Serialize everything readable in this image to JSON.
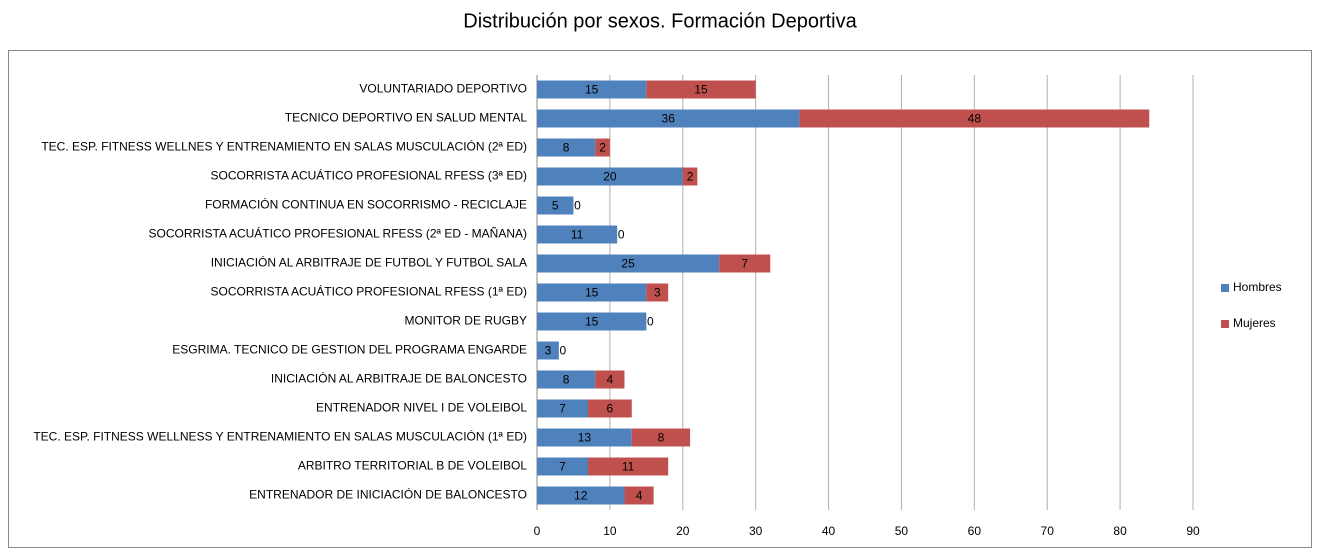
{
  "chart_data": {
    "type": "bar",
    "orientation": "horizontal",
    "stacked": true,
    "title": "Distribución por sexos. Formación Deportiva",
    "categories": [
      "VOLUNTARIADO DEPORTIVO",
      "TECNICO DEPORTIVO EN SALUD MENTAL",
      "TEC. ESP. FITNESS WELLNES Y ENTRENAMIENTO EN SALAS MUSCULACIÓN (2ª ED)",
      "SOCORRISTA ACUÁTICO PROFESIONAL RFESS (3ª ED)",
      "FORMACIÓN CONTINUA EN SOCORRISMO - RECICLAJE",
      "SOCORRISTA ACUÁTICO PROFESIONAL RFESS (2ª ED - MAÑANA)",
      "INICIACIÓN AL ARBITRAJE DE FUTBOL Y FUTBOL SALA",
      "SOCORRISTA ACUÁTICO PROFESIONAL RFESS (1ª ED)",
      "MONITOR DE RUGBY",
      "ESGRIMA. TECNICO DE GESTION DEL PROGRAMA ENGARDE",
      "INICIACIÓN AL ARBITRAJE DE BALONCESTO",
      "ENTRENADOR NIVEL I DE VOLEIBOL",
      "TEC. ESP. FITNESS WELLNESS Y ENTRENAMIENTO EN SALAS MUSCULACIÓN (1ª ED)",
      "ARBITRO TERRITORIAL B DE VOLEIBOL",
      "ENTRENADOR DE INICIACIÓN DE BALONCESTO"
    ],
    "series": [
      {
        "name": "Hombres",
        "color": "#4f81bd",
        "values": [
          15,
          36,
          8,
          20,
          5,
          11,
          25,
          15,
          15,
          3,
          8,
          7,
          13,
          7,
          12
        ]
      },
      {
        "name": "Mujeres",
        "color": "#c0504d",
        "values": [
          15,
          48,
          2,
          2,
          0,
          0,
          7,
          3,
          0,
          0,
          4,
          6,
          8,
          11,
          4
        ]
      }
    ],
    "xlim": [
      0,
      90
    ],
    "xticks": [
      0,
      10,
      20,
      30,
      40,
      50,
      60,
      70,
      80,
      90
    ],
    "grid": true,
    "legend": "right"
  }
}
